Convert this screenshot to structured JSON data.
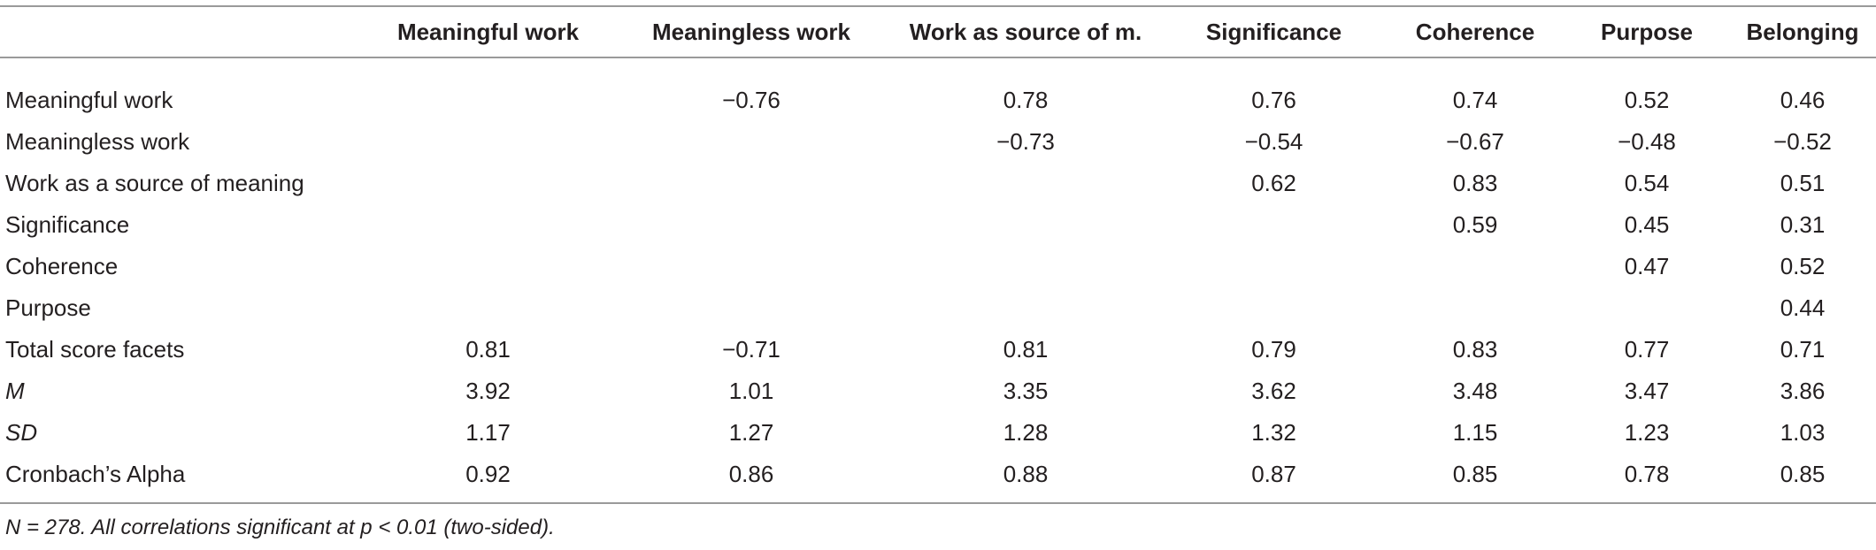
{
  "table": {
    "header": [
      null,
      "Meaningful work",
      "Meaningless work",
      "Work as source of m.",
      "Significance",
      "Coherence",
      "Purpose",
      "Belonging"
    ],
    "rows": [
      [
        "Meaningful work",
        null,
        "−0.76",
        "0.78",
        "0.76",
        "0.74",
        "0.52",
        "0.46"
      ],
      [
        "Meaningless work",
        null,
        null,
        "−0.73",
        "−0.54",
        "−0.67",
        "−0.48",
        "−0.52"
      ],
      [
        "Work as a source of meaning",
        null,
        null,
        null,
        "0.62",
        "0.83",
        "0.54",
        "0.51"
      ],
      [
        "Significance",
        null,
        null,
        null,
        null,
        "0.59",
        "0.45",
        "0.31"
      ],
      [
        "Coherence",
        null,
        null,
        null,
        null,
        null,
        "0.47",
        "0.52"
      ],
      [
        "Purpose",
        null,
        null,
        null,
        null,
        null,
        null,
        "0.44"
      ],
      [
        "Total score facets",
        "0.81",
        "−0.71",
        "0.81",
        "0.79",
        "0.83",
        "0.77",
        "0.71"
      ],
      [
        "M",
        "3.92",
        "1.01",
        "3.35",
        "3.62",
        "3.48",
        "3.47",
        "3.86"
      ],
      [
        "SD",
        "1.17",
        "1.27",
        "1.28",
        "1.32",
        "1.15",
        "1.23",
        "1.03"
      ],
      [
        "Cronbach’s Alpha",
        "0.92",
        "0.86",
        "0.88",
        "0.87",
        "0.85",
        "0.78",
        "0.85"
      ]
    ]
  },
  "footnote": "N = 278. All correlations significant at p < 0.01 (two-sided)."
}
